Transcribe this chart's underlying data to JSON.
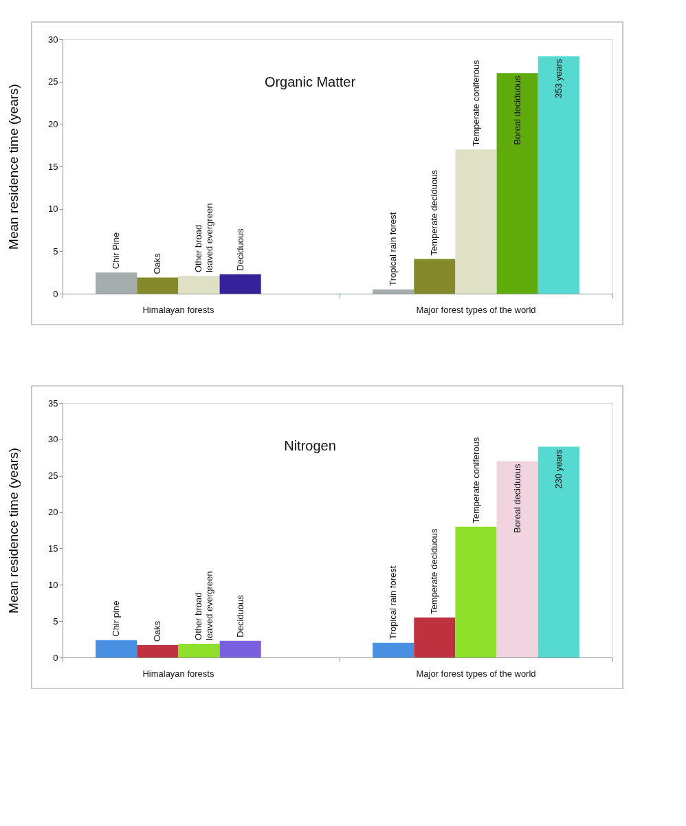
{
  "chart_data": [
    {
      "type": "bar",
      "title": "Organic Matter",
      "ylabel": "Mean residence time (years)",
      "categories": [
        "Chir Pine",
        "Oaks",
        "Other broad leaved evergreen",
        "Deciduous",
        "Tropical rain forest",
        "Temperate deciduous",
        "Temperate coniferous",
        "Boreal  deciduous",
        null
      ],
      "values": [
        2.5,
        1.9,
        2.1,
        2.3,
        0.5,
        4.1,
        17,
        26,
        28
      ],
      "colors": [
        "#a5aeac",
        "#848a2b",
        "#e0e0c6",
        "#35219a",
        "#a5aeac",
        "#848a2b",
        "#e0e0c6",
        "#5fab0b",
        "#56d9d0"
      ],
      "ylim": [
        0,
        30
      ],
      "yticks": [
        0,
        5,
        10,
        15,
        20,
        25,
        30
      ],
      "annotations": [
        "Himalayan forests",
        "Major forest types  of the world",
        "353 years"
      ]
    },
    {
      "type": "bar",
      "title": "Nitrogen",
      "ylabel": "Mean residence time (years)",
      "categories": [
        "Chir pine",
        "Oaks",
        "Other broad leaved evergreen",
        "Deciduous",
        "Tropical rain forest",
        "Temperate deciduous",
        "Temperate coniferous",
        "Boreal  deciduous",
        null
      ],
      "values": [
        2.4,
        1.7,
        1.9,
        2.3,
        2.0,
        5.5,
        18,
        27,
        29
      ],
      "colors": [
        "#4a90e2",
        "#c0313f",
        "#8fe02a",
        "#7a5fe0",
        "#4a90e2",
        "#c0313f",
        "#8fe02a",
        "#f2d4e0",
        "#56d9d0"
      ],
      "ylim": [
        0,
        35
      ],
      "yticks": [
        0,
        5,
        10,
        15,
        20,
        25,
        30,
        35
      ],
      "annotations": [
        "Himalayan forests",
        "Major forest types of the world",
        "230 years"
      ]
    }
  ]
}
